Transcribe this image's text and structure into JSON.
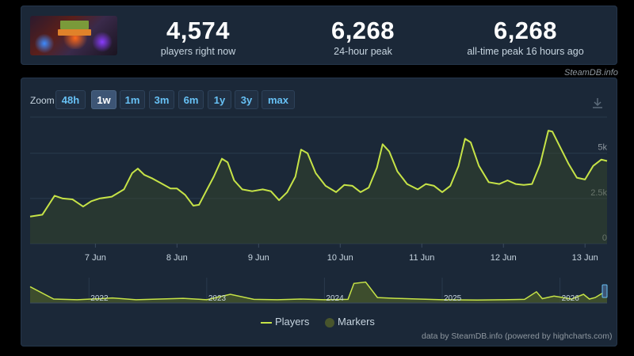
{
  "stats": [
    {
      "value": "4,574",
      "label": "players right now"
    },
    {
      "value": "6,268",
      "label": "24-hour peak"
    },
    {
      "value": "6,268",
      "label": "all-time peak 16 hours ago"
    }
  ],
  "credit_top": "SteamDB.info",
  "zoom": {
    "label": "Zoom",
    "buttons": [
      "48h",
      "1w",
      "1m",
      "3m",
      "6m",
      "1y",
      "3y",
      "max"
    ],
    "active": "1w"
  },
  "legend": {
    "players": "Players",
    "markers": "Markers"
  },
  "credit_bottom": "data by SteamDB.info (powered by highcharts.com)",
  "colors": {
    "line": "#c6e347",
    "fill": "#3a4a2a",
    "background": "#1b2838"
  },
  "chart_data": [
    {
      "type": "line",
      "series": [
        {
          "name": "Players",
          "x": [
            6.2,
            6.35,
            6.5,
            6.6,
            6.72,
            6.85,
            6.95,
            7.05,
            7.2,
            7.35,
            7.45,
            7.52,
            7.6,
            7.7,
            7.8,
            7.92,
            8.0,
            8.1,
            8.2,
            8.27,
            8.35,
            8.45,
            8.55,
            8.62,
            8.7,
            8.8,
            8.92,
            9.05,
            9.15,
            9.25,
            9.35,
            9.45,
            9.52,
            9.6,
            9.7,
            9.82,
            9.95,
            10.05,
            10.15,
            10.25,
            10.35,
            10.45,
            10.52,
            10.6,
            10.7,
            10.82,
            10.95,
            11.05,
            11.15,
            11.25,
            11.35,
            11.45,
            11.53,
            11.6,
            11.7,
            11.82,
            11.95,
            12.05,
            12.15,
            12.25,
            12.35,
            12.45,
            12.55,
            12.6,
            12.7,
            12.8,
            12.9,
            13.0,
            13.1,
            13.2,
            13.27
          ],
          "values": [
            1500,
            1600,
            2650,
            2500,
            2450,
            2050,
            2350,
            2500,
            2600,
            3000,
            3900,
            4150,
            3800,
            3600,
            3350,
            3050,
            3050,
            2700,
            2100,
            2150,
            2850,
            3700,
            4700,
            4500,
            3500,
            3000,
            2900,
            3000,
            2900,
            2400,
            2850,
            3700,
            5200,
            5000,
            3900,
            3200,
            2850,
            3250,
            3200,
            2850,
            3100,
            4200,
            5500,
            5100,
            4000,
            3300,
            3000,
            3300,
            3200,
            2850,
            3200,
            4300,
            5800,
            5600,
            4300,
            3400,
            3300,
            3500,
            3300,
            3250,
            3300,
            4400,
            6250,
            6200,
            5300,
            4400,
            3650,
            3550,
            4300,
            4650,
            4574
          ]
        }
      ],
      "x_labels": [
        "7 Jun",
        "8 Jun",
        "9 Jun",
        "10 Jun",
        "11 Jun",
        "12 Jun",
        "13 Jun"
      ],
      "x_ticks": [
        7,
        8,
        9,
        10,
        11,
        12,
        13
      ],
      "y_labels": [
        "0",
        "2.5k",
        "5k"
      ],
      "y_ticks": [
        0,
        2500,
        5000
      ],
      "ylim": [
        0,
        7000
      ],
      "grid": true
    },
    {
      "type": "area",
      "series": [
        {
          "name": "Players",
          "x": [
            2021.5,
            2021.7,
            2021.9,
            2022.2,
            2022.4,
            2022.6,
            2022.8,
            2023.0,
            2023.2,
            2023.4,
            2023.6,
            2023.8,
            2024.0,
            2024.2,
            2024.25,
            2024.35,
            2024.45,
            2024.6,
            2024.8,
            2025.0,
            2025.3,
            2025.5,
            2025.7,
            2025.8,
            2025.85,
            2025.95,
            2026.1,
            2026.2,
            2026.25,
            2026.3,
            2026.4
          ],
          "values": [
            4500,
            1100,
            900,
            1400,
            900,
            1100,
            1300,
            900,
            2400,
            1000,
            900,
            1100,
            900,
            1000,
            5400,
            5800,
            1500,
            1300,
            1100,
            900,
            800,
            900,
            1000,
            3100,
            1200,
            1900,
            1100,
            2400,
            1100,
            1500,
            3500
          ]
        }
      ],
      "x_labels": [
        "2022",
        "2023",
        "2024",
        "2025",
        "2026"
      ],
      "x_ticks": [
        2022,
        2023,
        2024,
        2025,
        2026
      ],
      "ylim": [
        0,
        7000
      ]
    }
  ]
}
